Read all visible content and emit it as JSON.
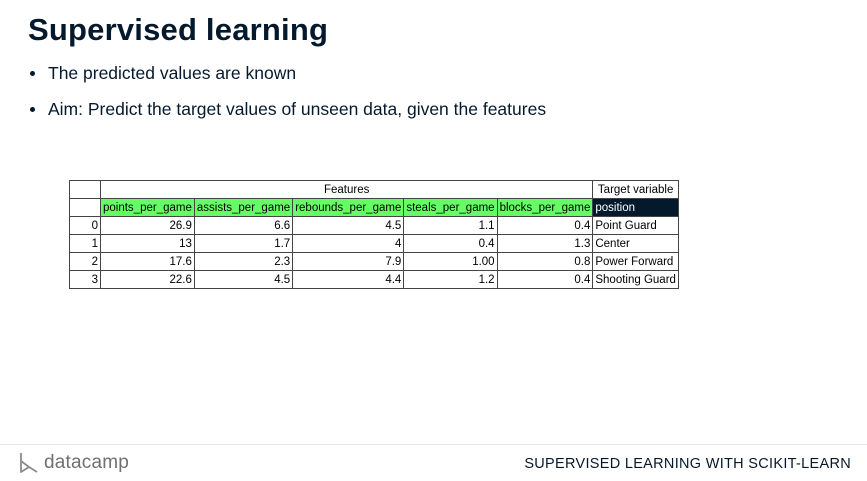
{
  "slide": {
    "title": "Supervised learning",
    "bullets": [
      "The predicted values are known",
      "Aim: Predict the target values of unseen data, given the features"
    ]
  },
  "table": {
    "features_header": "Features",
    "target_header": "Target variable",
    "columns": [
      "points_per_game",
      "assists_per_game",
      "rebounds_per_game",
      "steals_per_game",
      "blocks_per_game",
      "position"
    ],
    "rows": [
      {
        "index": "0",
        "cells": [
          "26.9",
          "6.6",
          "4.5",
          "1.1",
          "0.4",
          "Point Guard"
        ]
      },
      {
        "index": "1",
        "cells": [
          "13",
          "1.7",
          "4",
          "0.4",
          "1.3",
          "Center"
        ]
      },
      {
        "index": "2",
        "cells": [
          "17.6",
          "2.3",
          "7.9",
          "1.00",
          "0.8",
          "Power Forward"
        ]
      },
      {
        "index": "3",
        "cells": [
          "22.6",
          "4.5",
          "4.4",
          "1.2",
          "0.4",
          "Shooting Guard"
        ]
      }
    ],
    "colors": {
      "feature": "#65ff65",
      "target": "#05192d"
    }
  },
  "footer": {
    "logo_text": "datacamp",
    "logo_icon": "datacamp-logo-icon",
    "course_title": "SUPERVISED LEARNING WITH SCIKIT-LEARN"
  }
}
